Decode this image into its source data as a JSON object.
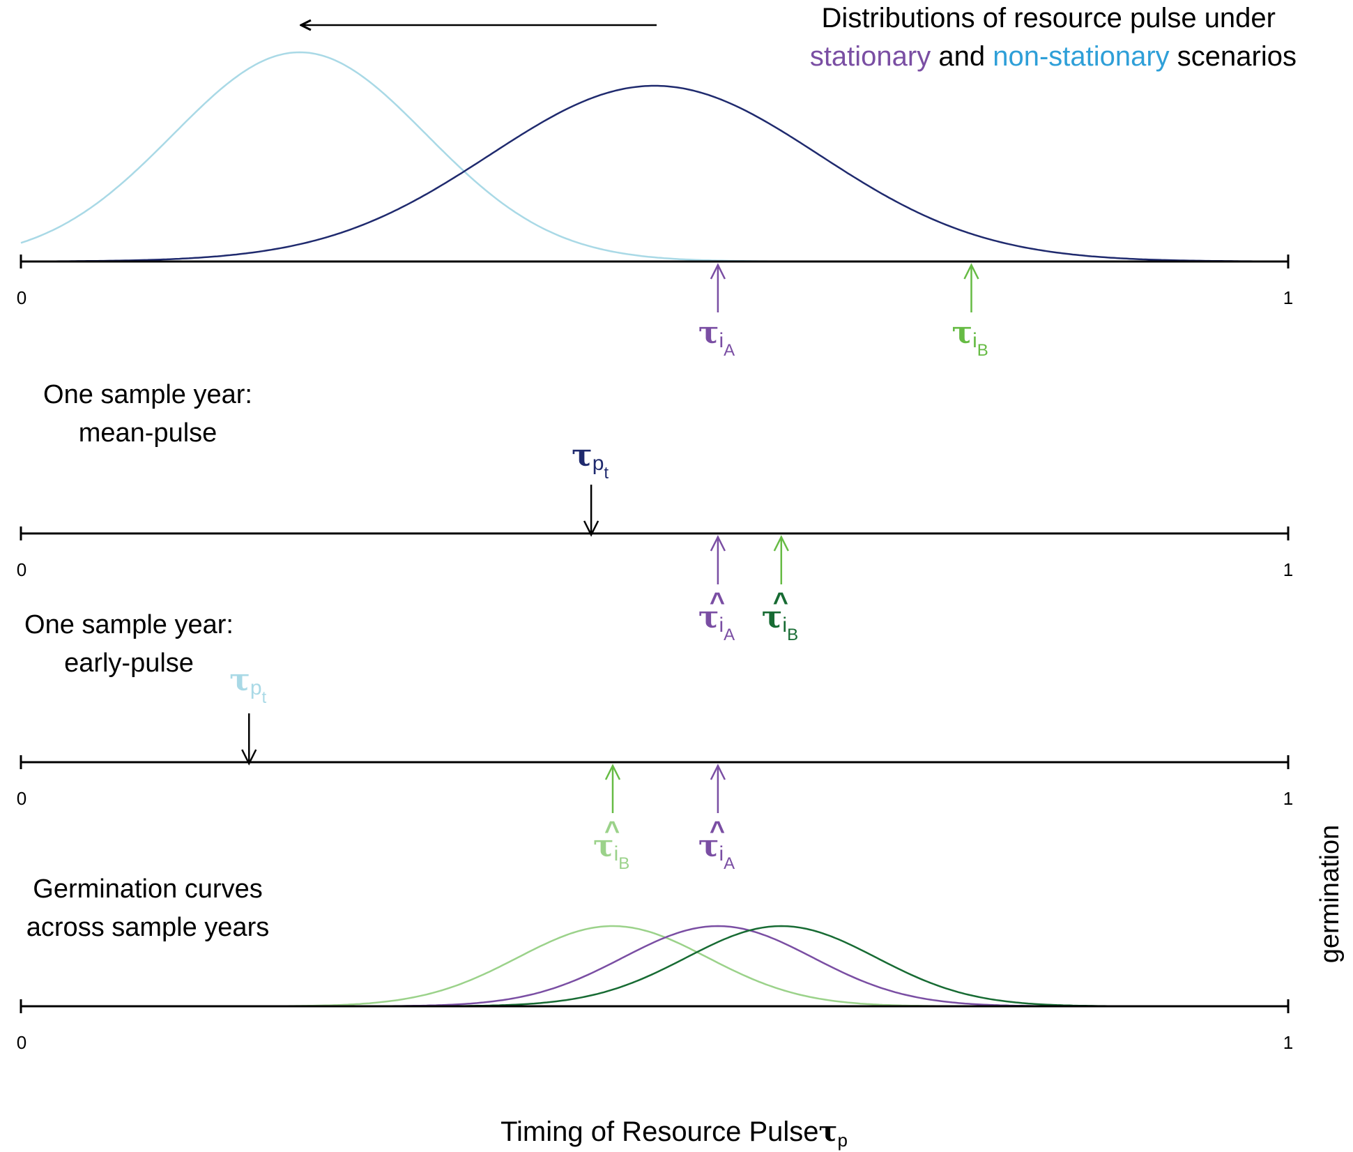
{
  "title": {
    "line1": "Distributions of resource pulse under",
    "line2_part1": "stationary",
    "line2_part2": " and ",
    "line2_part3": "non-stationary",
    "line2_part4": " scenarios"
  },
  "axis": {
    "min_label": "0",
    "max_label": "1",
    "domain": [
      0,
      1
    ]
  },
  "panels": {
    "mean_pulse_title": [
      "One sample year:",
      "mean-pulse"
    ],
    "early_pulse_title": [
      "One sample year:",
      "early-pulse"
    ],
    "germination_title": [
      "Germination curves",
      "across sample years"
    ]
  },
  "symbols": {
    "tau": "τ",
    "sub_i": "i",
    "sub_A": "A",
    "sub_B": "B",
    "sub_p": "p",
    "sub_t": "t",
    "hat": "^"
  },
  "y_label": "germination",
  "x_label": "Timing of Resource Pulse",
  "colors": {
    "stationary": "#7a4ea3",
    "non_stationary": "#2e9fd8",
    "dist_stationary": "#1f2a6e",
    "dist_non_stationary": "#a9d9e6",
    "tau_iA": "#7a4ea3",
    "tau_iB": "#66bb44",
    "tau_iB_hat_mean": "#176b33",
    "tau_iB_hat_early": "#9bd28a",
    "tau_pt_mean": "#1f2a6e",
    "tau_pt_early": "#a9d9e6",
    "germ_light_green": "#9bd28a",
    "germ_purple": "#7a4ea3",
    "germ_dark_green": "#176b33"
  },
  "chart_data": {
    "type": "line",
    "xlim": [
      0,
      1
    ],
    "shift_arrow": {
      "from": 0.5,
      "to": 0.22
    },
    "pulse_distributions": [
      {
        "mean": 0.5,
        "sd": 0.13,
        "relative_height": 0.84,
        "color_key": "dist_stationary"
      },
      {
        "mean": 0.22,
        "sd": 0.1,
        "relative_height": 1.0,
        "color_key": "dist_non_stationary"
      }
    ],
    "panel1_markers": {
      "tau_iA": 0.55,
      "tau_iB": 0.75
    },
    "mean_pulse_year": {
      "tau_pt": 0.45,
      "tau_iA_hat": 0.55,
      "tau_iB_hat": 0.6
    },
    "early_pulse_year": {
      "tau_pt": 0.18,
      "tau_iB_hat": 0.467,
      "tau_iA_hat": 0.55
    },
    "germination_curves": [
      {
        "mean": 0.467,
        "sd": 0.075,
        "color_key": "germ_light_green"
      },
      {
        "mean": 0.55,
        "sd": 0.075,
        "color_key": "germ_purple"
      },
      {
        "mean": 0.6,
        "sd": 0.075,
        "color_key": "germ_dark_green"
      }
    ]
  }
}
